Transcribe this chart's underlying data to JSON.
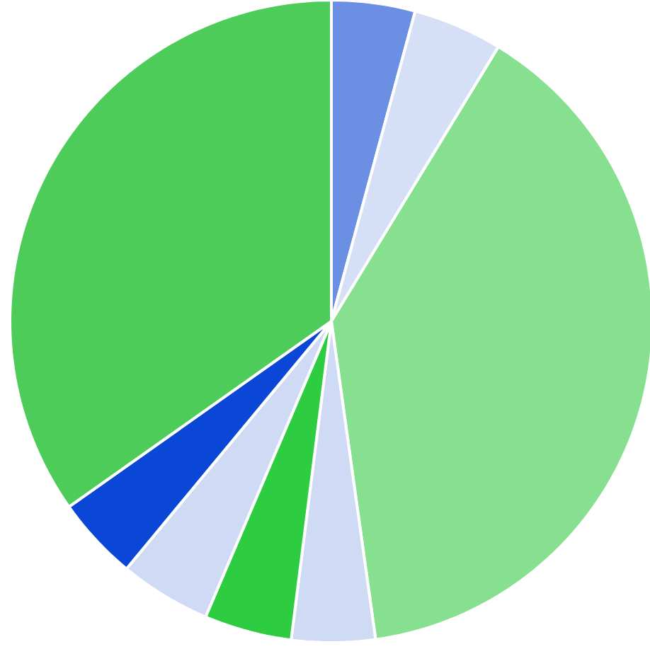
{
  "chart_data": {
    "type": "pie",
    "categories": [
      null,
      null,
      null,
      null,
      null,
      null,
      null,
      null
    ],
    "values": [
      4.2,
      4.5,
      39.1,
      4.2,
      4.4,
      4.6,
      4.2,
      34.8
    ],
    "colors": [
      "#6b8fe3",
      "#d5e0f7",
      "#86e08f",
      "#cfdbf5",
      "#2ecc40",
      "#cfdbf5",
      "#0a47d6",
      "#4dcc5a"
    ]
  }
}
